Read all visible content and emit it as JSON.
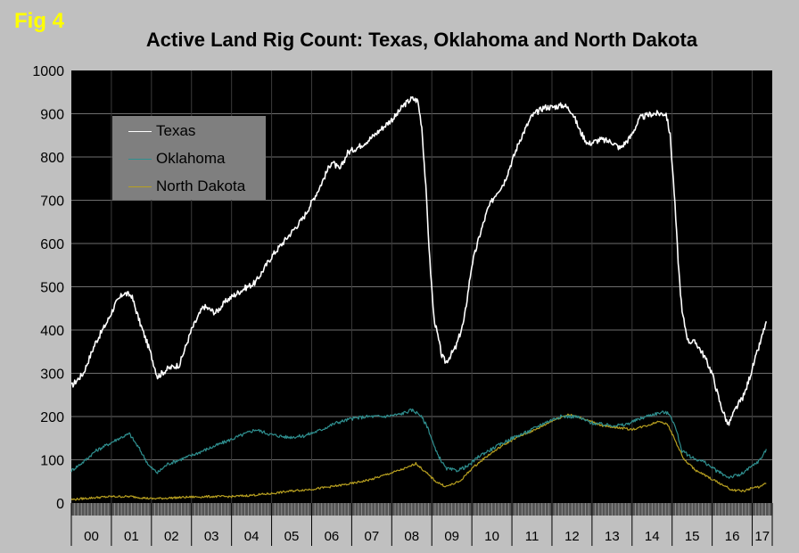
{
  "figure_label": "Fig 4",
  "chart_data": {
    "type": "line",
    "title": "Active Land Rig Count: Texas, Oklahoma and North Dakota",
    "xlabel": "",
    "ylabel": "",
    "ylim": [
      0,
      1000
    ],
    "yticks": [
      0,
      100,
      200,
      300,
      400,
      500,
      600,
      700,
      800,
      900,
      1000
    ],
    "xlim": [
      2000,
      2017.5
    ],
    "grid": true,
    "legend_position": "top-left",
    "categories": [
      "00",
      "01",
      "02",
      "03",
      "04",
      "05",
      "06",
      "07",
      "08",
      "09",
      "10",
      "11",
      "12",
      "13",
      "14",
      "15",
      "16",
      "17"
    ],
    "series": [
      {
        "name": "Texas",
        "color": "#ffffff",
        "points": [
          [
            2000.0,
            270
          ],
          [
            2000.3,
            300
          ],
          [
            2000.6,
            370
          ],
          [
            2000.9,
            420
          ],
          [
            2001.1,
            460
          ],
          [
            2001.3,
            485
          ],
          [
            2001.5,
            480
          ],
          [
            2001.7,
            420
          ],
          [
            2001.95,
            355
          ],
          [
            2002.15,
            292
          ],
          [
            2002.4,
            310
          ],
          [
            2002.7,
            320
          ],
          [
            2003.0,
            400
          ],
          [
            2003.3,
            455
          ],
          [
            2003.6,
            440
          ],
          [
            2003.9,
            470
          ],
          [
            2004.3,
            495
          ],
          [
            2004.6,
            510
          ],
          [
            2005.0,
            570
          ],
          [
            2005.4,
            615
          ],
          [
            2005.8,
            660
          ],
          [
            2006.2,
            730
          ],
          [
            2006.5,
            790
          ],
          [
            2006.7,
            770
          ],
          [
            2006.9,
            810
          ],
          [
            2007.2,
            825
          ],
          [
            2007.5,
            845
          ],
          [
            2007.8,
            870
          ],
          [
            2008.1,
            895
          ],
          [
            2008.3,
            920
          ],
          [
            2008.5,
            935
          ],
          [
            2008.65,
            930
          ],
          [
            2008.75,
            870
          ],
          [
            2008.85,
            730
          ],
          [
            2008.95,
            560
          ],
          [
            2009.05,
            430
          ],
          [
            2009.25,
            340
          ],
          [
            2009.35,
            325
          ],
          [
            2009.6,
            360
          ],
          [
            2009.8,
            420
          ],
          [
            2010.0,
            550
          ],
          [
            2010.2,
            620
          ],
          [
            2010.4,
            680
          ],
          [
            2010.6,
            715
          ],
          [
            2010.8,
            740
          ],
          [
            2011.0,
            790
          ],
          [
            2011.2,
            840
          ],
          [
            2011.5,
            895
          ],
          [
            2011.8,
            915
          ],
          [
            2012.0,
            915
          ],
          [
            2012.3,
            920
          ],
          [
            2012.5,
            905
          ],
          [
            2012.7,
            860
          ],
          [
            2012.9,
            830
          ],
          [
            2013.2,
            840
          ],
          [
            2013.5,
            835
          ],
          [
            2013.7,
            820
          ],
          [
            2013.95,
            845
          ],
          [
            2014.2,
            890
          ],
          [
            2014.5,
            900
          ],
          [
            2014.85,
            900
          ],
          [
            2014.95,
            850
          ],
          [
            2015.05,
            720
          ],
          [
            2015.15,
            560
          ],
          [
            2015.25,
            440
          ],
          [
            2015.4,
            375
          ],
          [
            2015.6,
            370
          ],
          [
            2015.8,
            340
          ],
          [
            2016.0,
            300
          ],
          [
            2016.2,
            230
          ],
          [
            2016.4,
            180
          ],
          [
            2016.6,
            220
          ],
          [
            2016.8,
            250
          ],
          [
            2017.0,
            310
          ],
          [
            2017.2,
            370
          ],
          [
            2017.35,
            420
          ]
        ]
      },
      {
        "name": "Oklahoma",
        "color": "#2f8f8f",
        "points": [
          [
            2000.0,
            75
          ],
          [
            2000.3,
            95
          ],
          [
            2000.6,
            120
          ],
          [
            2000.9,
            135
          ],
          [
            2001.2,
            150
          ],
          [
            2001.45,
            160
          ],
          [
            2001.7,
            125
          ],
          [
            2001.95,
            85
          ],
          [
            2002.15,
            70
          ],
          [
            2002.4,
            90
          ],
          [
            2002.7,
            100
          ],
          [
            2003.0,
            110
          ],
          [
            2003.4,
            125
          ],
          [
            2003.8,
            140
          ],
          [
            2004.2,
            155
          ],
          [
            2004.6,
            170
          ],
          [
            2005.0,
            158
          ],
          [
            2005.4,
            152
          ],
          [
            2005.8,
            155
          ],
          [
            2006.2,
            168
          ],
          [
            2006.6,
            185
          ],
          [
            2007.0,
            195
          ],
          [
            2007.4,
            200
          ],
          [
            2007.8,
            200
          ],
          [
            2008.2,
            205
          ],
          [
            2008.5,
            215
          ],
          [
            2008.7,
            205
          ],
          [
            2008.9,
            175
          ],
          [
            2009.1,
            120
          ],
          [
            2009.35,
            80
          ],
          [
            2009.6,
            75
          ],
          [
            2009.9,
            85
          ],
          [
            2010.2,
            110
          ],
          [
            2010.6,
            130
          ],
          [
            2011.0,
            150
          ],
          [
            2011.4,
            165
          ],
          [
            2011.8,
            185
          ],
          [
            2012.2,
            200
          ],
          [
            2012.6,
            200
          ],
          [
            2013.0,
            185
          ],
          [
            2013.4,
            180
          ],
          [
            2013.8,
            180
          ],
          [
            2014.2,
            195
          ],
          [
            2014.5,
            205
          ],
          [
            2014.8,
            210
          ],
          [
            2014.95,
            205
          ],
          [
            2015.1,
            170
          ],
          [
            2015.25,
            120
          ],
          [
            2015.5,
            105
          ],
          [
            2015.8,
            95
          ],
          [
            2016.1,
            75
          ],
          [
            2016.4,
            60
          ],
          [
            2016.7,
            65
          ],
          [
            2017.0,
            85
          ],
          [
            2017.2,
            100
          ],
          [
            2017.35,
            125
          ]
        ]
      },
      {
        "name": "North Dakota",
        "color": "#b8a020",
        "points": [
          [
            2000.0,
            8
          ],
          [
            2000.5,
            12
          ],
          [
            2001.0,
            15
          ],
          [
            2001.5,
            15
          ],
          [
            2002.0,
            10
          ],
          [
            2002.5,
            12
          ],
          [
            2003.0,
            14
          ],
          [
            2003.5,
            15
          ],
          [
            2004.0,
            15
          ],
          [
            2004.5,
            18
          ],
          [
            2005.0,
            22
          ],
          [
            2005.5,
            28
          ],
          [
            2006.0,
            32
          ],
          [
            2006.5,
            38
          ],
          [
            2007.0,
            45
          ],
          [
            2007.5,
            55
          ],
          [
            2008.0,
            70
          ],
          [
            2008.4,
            82
          ],
          [
            2008.6,
            92
          ],
          [
            2008.8,
            75
          ],
          [
            2009.1,
            50
          ],
          [
            2009.35,
            38
          ],
          [
            2009.7,
            50
          ],
          [
            2010.0,
            80
          ],
          [
            2010.4,
            110
          ],
          [
            2010.8,
            135
          ],
          [
            2011.2,
            155
          ],
          [
            2011.6,
            170
          ],
          [
            2012.0,
            190
          ],
          [
            2012.4,
            205
          ],
          [
            2012.8,
            195
          ],
          [
            2013.2,
            180
          ],
          [
            2013.6,
            175
          ],
          [
            2014.0,
            170
          ],
          [
            2014.4,
            180
          ],
          [
            2014.7,
            190
          ],
          [
            2014.9,
            180
          ],
          [
            2015.1,
            140
          ],
          [
            2015.3,
            100
          ],
          [
            2015.6,
            75
          ],
          [
            2015.9,
            60
          ],
          [
            2016.2,
            45
          ],
          [
            2016.5,
            30
          ],
          [
            2016.8,
            28
          ],
          [
            2017.0,
            35
          ],
          [
            2017.2,
            38
          ],
          [
            2017.35,
            45
          ]
        ]
      }
    ]
  }
}
